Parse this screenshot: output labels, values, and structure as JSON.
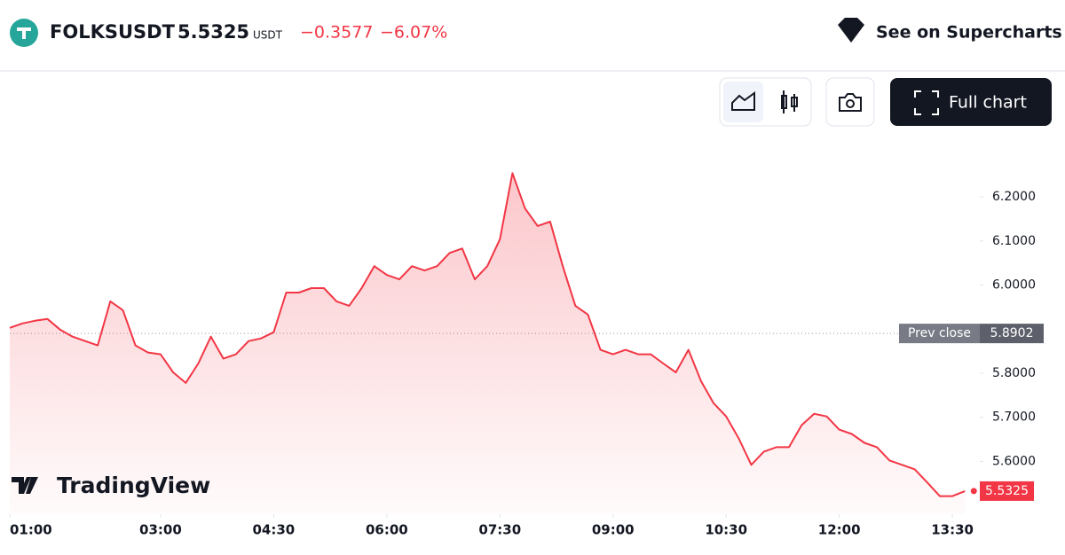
{
  "header": {
    "symbol": "FOLKSUSDT",
    "price": "5.5325",
    "currency": "USDT",
    "change": "−0.3577",
    "change_percent": "−6.07%",
    "supercharts": "See on Supercharts",
    "full_chart": "Full chart",
    "watermark": "TradingView"
  },
  "chart_data": {
    "type": "area",
    "x": [
      "01:00",
      "01:10",
      "01:20",
      "01:30",
      "01:40",
      "01:50",
      "02:00",
      "02:10",
      "02:20",
      "02:30",
      "02:40",
      "02:50",
      "03:00",
      "03:10",
      "03:20",
      "03:30",
      "03:40",
      "03:50",
      "04:00",
      "04:10",
      "04:20",
      "04:30",
      "04:40",
      "04:50",
      "05:00",
      "05:10",
      "05:20",
      "05:30",
      "05:40",
      "05:50",
      "06:00",
      "06:10",
      "06:20",
      "06:30",
      "06:40",
      "06:50",
      "07:00",
      "07:10",
      "07:20",
      "07:30",
      "07:40",
      "07:50",
      "08:00",
      "08:10",
      "08:20",
      "08:30",
      "08:40",
      "08:50",
      "09:00",
      "09:10",
      "09:20",
      "09:30",
      "09:40",
      "09:50",
      "10:00",
      "10:10",
      "10:20",
      "10:30",
      "10:40",
      "10:50",
      "11:00",
      "11:10",
      "11:20",
      "11:30",
      "11:40",
      "11:50",
      "12:00",
      "12:10",
      "12:20",
      "12:30",
      "12:40",
      "12:50",
      "13:00",
      "13:10",
      "13:20",
      "13:30",
      "13:40"
    ],
    "series": [
      {
        "name": "FOLKSUSDT",
        "color": "#f23645",
        "values": [
          5.903,
          5.913,
          5.919,
          5.923,
          5.899,
          5.883,
          5.873,
          5.863,
          5.963,
          5.943,
          5.863,
          5.847,
          5.843,
          5.802,
          5.778,
          5.822,
          5.883,
          5.833,
          5.843,
          5.873,
          5.879,
          5.893,
          5.983,
          5.983,
          5.993,
          5.993,
          5.963,
          5.953,
          5.993,
          6.043,
          6.023,
          6.013,
          6.043,
          6.033,
          6.043,
          6.073,
          6.083,
          6.013,
          6.043,
          6.104,
          6.254,
          6.174,
          6.134,
          6.144,
          6.043,
          5.953,
          5.933,
          5.853,
          5.843,
          5.853,
          5.843,
          5.843,
          5.822,
          5.802,
          5.853,
          5.782,
          5.732,
          5.702,
          5.652,
          5.592,
          5.622,
          5.632,
          5.632,
          5.682,
          5.708,
          5.702,
          5.672,
          5.662,
          5.642,
          5.632,
          5.602,
          5.592,
          5.582,
          5.552,
          5.521,
          5.521,
          5.5325
        ]
      }
    ],
    "xlim": [
      "01:00",
      "13:49"
    ],
    "xticks": [
      "01:00",
      "03:00",
      "04:30",
      "06:00",
      "07:30",
      "09:00",
      "10:30",
      "12:00",
      "13:30"
    ],
    "ylim": [
      5.48,
      6.325
    ],
    "yticks": [
      {
        "value": 5.6,
        "label": "5.6000"
      },
      {
        "value": 5.7,
        "label": "5.7000"
      },
      {
        "value": 5.8,
        "label": "5.8000"
      },
      {
        "value": 6.0,
        "label": "6.0000"
      },
      {
        "value": 6.1,
        "label": "6.1000"
      },
      {
        "value": 6.2,
        "label": "6.2000"
      }
    ],
    "prev_close": {
      "label": "Prev close",
      "value": 5.8902
    },
    "grid": false
  }
}
